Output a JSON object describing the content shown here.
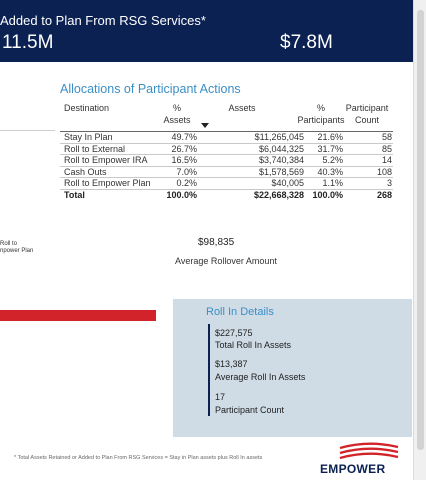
{
  "header": {
    "title": "Added to Plan From RSG Services*",
    "value_left": "11.5M",
    "value_right": "$7.8M"
  },
  "allocations": {
    "title": "Allocations of Participant Actions",
    "columns": {
      "destination": "Destination",
      "pct_assets": [
        "%",
        "Assets"
      ],
      "assets": "Assets",
      "pct_participants": [
        "%",
        "Participants"
      ],
      "participant_count": [
        "Participant",
        "Count"
      ]
    },
    "rows": [
      {
        "dest": "Stay In Plan",
        "pct": "49.7%",
        "assets": "$11,265,045",
        "pctp": "21.6%",
        "count": "58"
      },
      {
        "dest": "Roll to External",
        "pct": "26.7%",
        "assets": "$6,044,325",
        "pctp": "31.7%",
        "count": "85"
      },
      {
        "dest": "Roll to Empower IRA",
        "pct": "16.5%",
        "assets": "$3,740,384",
        "pctp": "5.2%",
        "count": "14"
      },
      {
        "dest": "Cash Outs",
        "pct": "7.0%",
        "assets": "$1,578,569",
        "pctp": "40.3%",
        "count": "108"
      },
      {
        "dest": "Roll to Empower Plan",
        "pct": "0.2%",
        "assets": "$40,005",
        "pctp": "1.1%",
        "count": "3"
      }
    ],
    "total": {
      "dest": "Total",
      "pct": "100.0%",
      "assets": "$22,668,328",
      "pctp": "100.0%",
      "count": "268"
    }
  },
  "side_label": [
    "Roll to",
    "npower Plan"
  ],
  "average_rollover": {
    "value": "$98,835",
    "label": "Average Rollover Amount"
  },
  "roll_in": {
    "title": "Roll In Details",
    "items": [
      {
        "value": "$227,575",
        "label": "Total Roll In Assets"
      },
      {
        "value": "$13,387",
        "label": "Average Roll In Assets"
      },
      {
        "value": "17",
        "label": "Participant Count"
      }
    ]
  },
  "footnote": "* Total Assets Retained or Added to Plan From RSG Services = Stay in Plan assets plus Roll In assets",
  "logo": {
    "text": "EMPOWER",
    "icon": "empower-flag-logo",
    "color_red": "#d2232a",
    "color_navy": "#0b2152"
  },
  "colors": {
    "header_bg": "#0b2152",
    "accent_blue": "#3b8fc6",
    "panel_bg": "#cfdce6",
    "bar_red": "#d2232a"
  }
}
